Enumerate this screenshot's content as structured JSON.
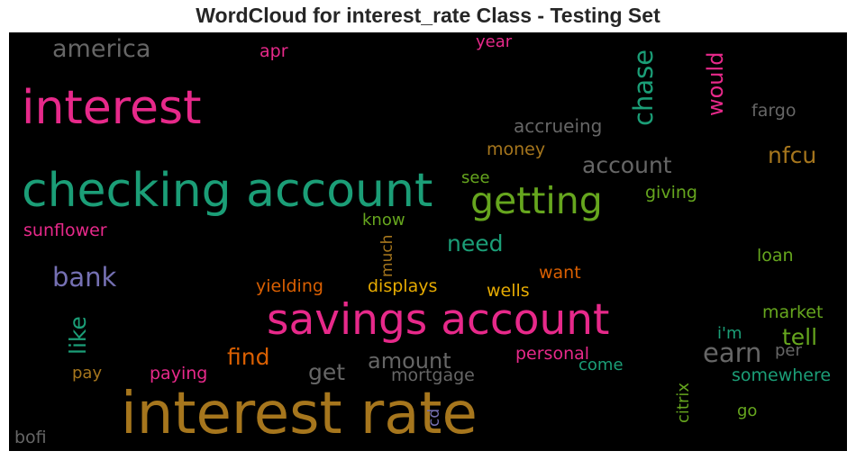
{
  "title": "WordCloud for interest_rate Class - Testing Set",
  "colors": {
    "pink": "#e7298a",
    "green": "#1b9e77",
    "olive": "#66a61e",
    "gold": "#a6761d",
    "gray": "#666666",
    "orange": "#d95f02",
    "purple": "#7570b3",
    "yellow": "#e6ab02"
  },
  "words": {
    "interest_rate": "interest rate",
    "savings_account": "savings account",
    "checking_account": "checking account",
    "interest": "interest",
    "getting": "getting",
    "america": "america",
    "chase": "chase",
    "would": "would",
    "account": "account",
    "nfcu": "nfcu",
    "bank": "bank",
    "earn": "earn",
    "tell": "tell",
    "need": "need",
    "find": "find",
    "like": "like",
    "amount": "amount",
    "get": "get",
    "fargo": "fargo",
    "accrueing": "accrueing",
    "money": "money",
    "apr": "apr",
    "year": "year",
    "see": "see",
    "know": "know",
    "much": "much",
    "giving": "giving",
    "sunflower": "sunflower",
    "loan": "loan",
    "yielding": "yielding",
    "displays": "displays",
    "want": "want",
    "wells": "wells",
    "market": "market",
    "im": "i'm",
    "per": "per",
    "personal": "personal",
    "come": "come",
    "citrix": "citrix",
    "somewhere": "somewhere",
    "pay": "pay",
    "paying": "paying",
    "mortgage": "mortgage",
    "cd": "cd",
    "go": "go",
    "bofi": "bofi"
  }
}
